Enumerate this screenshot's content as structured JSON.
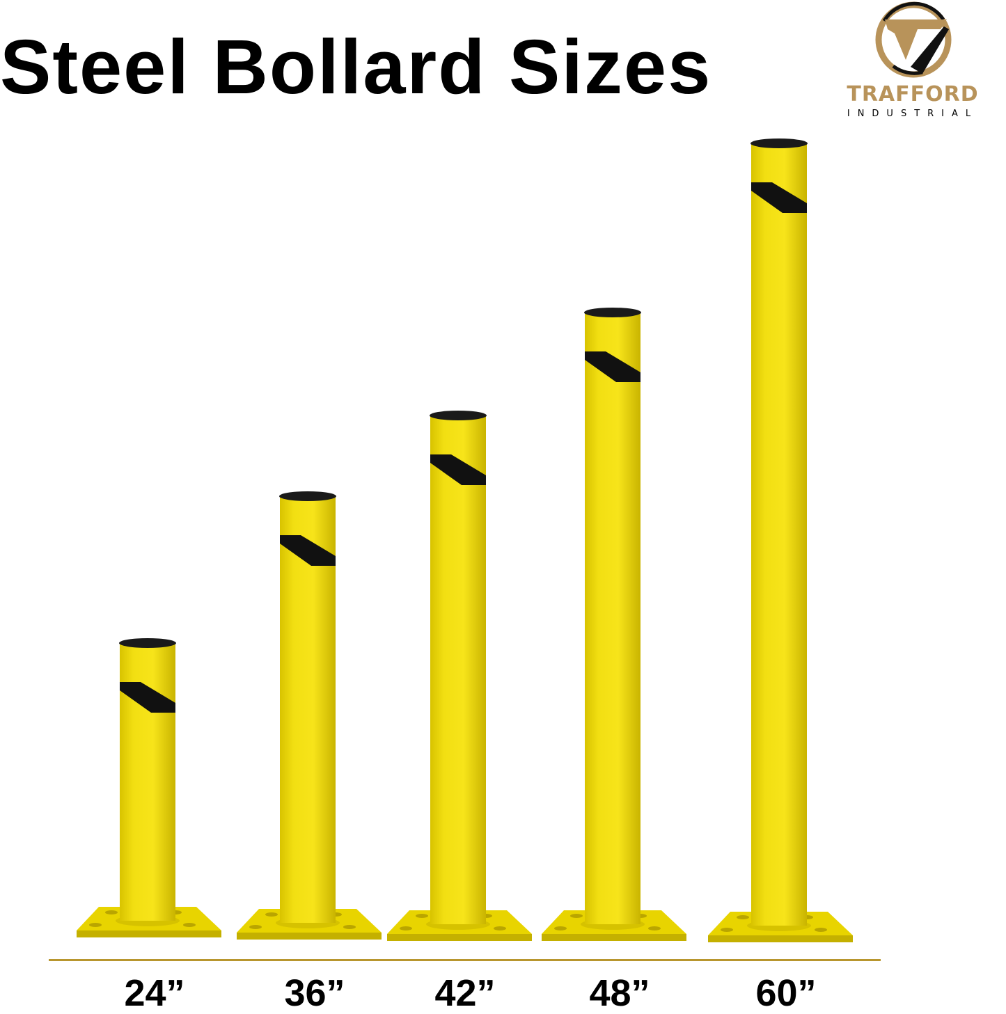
{
  "header": {
    "title": "Steel Bollard Sizes"
  },
  "logo": {
    "brand": "TRAFFORD",
    "subtitle": "INDUSTRIAL",
    "icon": "trafford-t-circle-logo"
  },
  "bollards": [
    {
      "size_label": "24”"
    },
    {
      "size_label": "36”"
    },
    {
      "size_label": "42”"
    },
    {
      "size_label": "48”"
    },
    {
      "size_label": "60”"
    }
  ],
  "colors": {
    "bollard_yellow": "#f2df12",
    "bollard_shade": "#c9b400",
    "cap": "#1a1a1a",
    "gold": "#b8935a",
    "ground_line": "#b8962e"
  }
}
